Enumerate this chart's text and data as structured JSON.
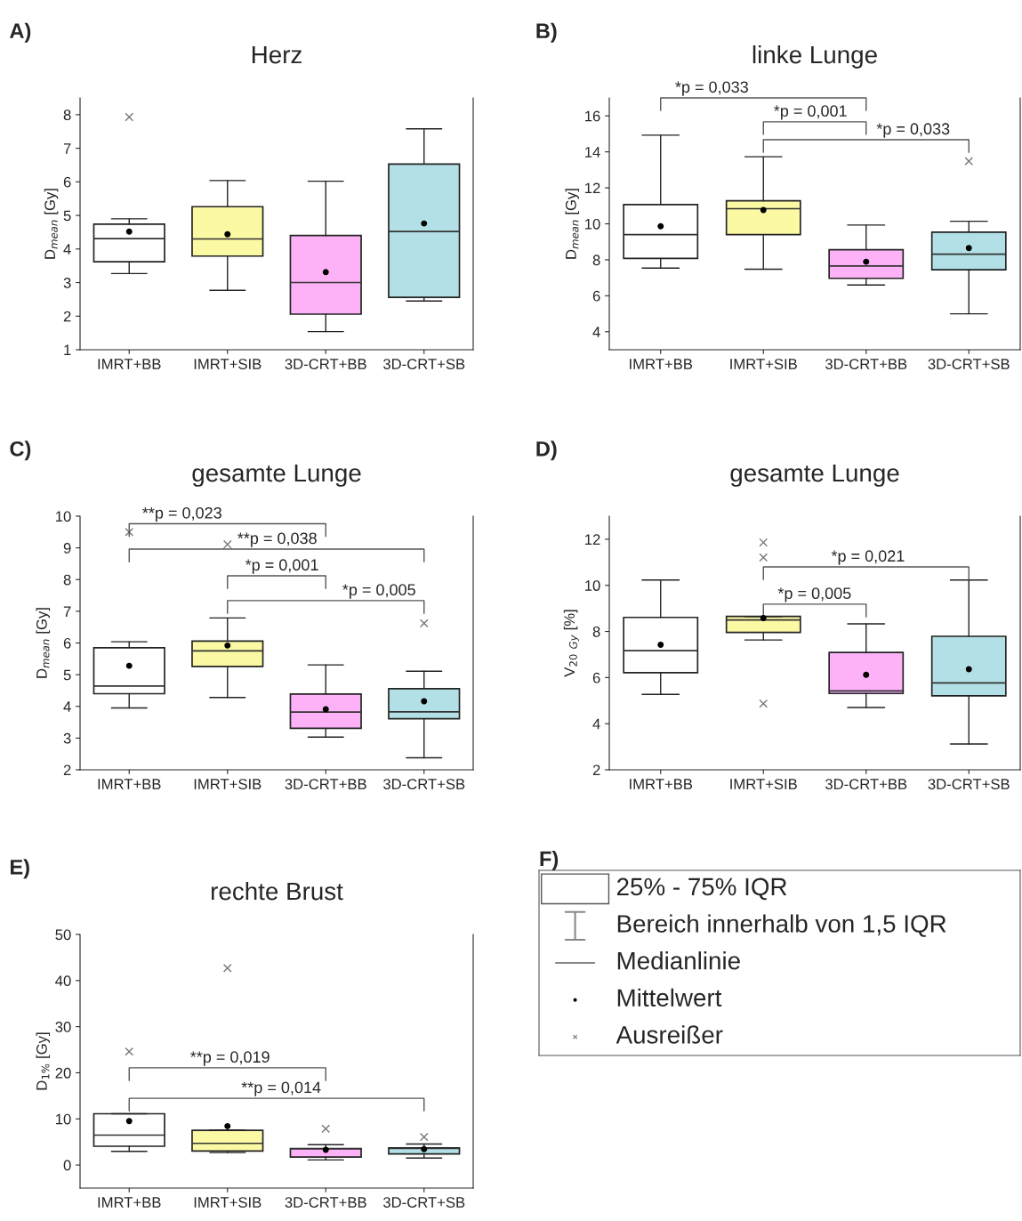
{
  "chart_data": [
    {
      "type": "box",
      "title": "Herz",
      "ylabel": "D$_{mean}$ [Gy]",
      "categories": [
        "IMRT+BB",
        "IMRT+SIB",
        "3D-CRT+BB",
        "3D-CRT+SB"
      ],
      "colors": [
        "#ffffff",
        "#fbf9a4",
        "#fdb2f8",
        "#b2e0e6"
      ],
      "ylim": [
        1,
        8.5
      ],
      "yticks": [
        1,
        2,
        3,
        4,
        5,
        6,
        7,
        8
      ],
      "grid": false,
      "legend": false,
      "boxes": [
        {
          "low": 3.27,
          "q1": 3.62,
          "median": 4.31,
          "q3": 4.74,
          "high": 4.9,
          "mean": 4.52,
          "outliers": [
            7.93
          ]
        },
        {
          "low": 2.77,
          "q1": 3.79,
          "median": 4.3,
          "q3": 5.26,
          "high": 6.04,
          "mean": 4.44
        },
        {
          "low": 1.54,
          "q1": 2.06,
          "median": 3.0,
          "q3": 4.4,
          "high": 6.02,
          "mean": 3.31
        },
        {
          "low": 2.45,
          "q1": 2.56,
          "median": 4.52,
          "q3": 6.53,
          "high": 7.58,
          "mean": 4.76
        }
      ],
      "annotations": [
        "A)"
      ]
    },
    {
      "type": "box",
      "title": "linke Lunge",
      "ylabel": "D$_{mean}$ [Gy]",
      "categories": [
        "IMRT+BB",
        "IMRT+SIB",
        "3D-CRT+BB",
        "3D-CRT+SB"
      ],
      "colors": [
        "#ffffff",
        "#fbf9a4",
        "#fdb2f8",
        "#b2e0e6"
      ],
      "ylim": [
        3,
        17
      ],
      "yticks": [
        4,
        6,
        8,
        10,
        12,
        14,
        16
      ],
      "grid": false,
      "legend": false,
      "boxes": [
        {
          "low": 7.54,
          "q1": 8.08,
          "median": 9.4,
          "q3": 11.07,
          "high": 14.93,
          "mean": 9.86
        },
        {
          "low": 7.48,
          "q1": 9.4,
          "median": 10.84,
          "q3": 11.28,
          "high": 13.73,
          "mean": 10.77
        },
        {
          "low": 6.6,
          "q1": 6.97,
          "median": 7.66,
          "q3": 8.56,
          "high": 9.93,
          "mean": 7.89
        },
        {
          "low": 5.0,
          "q1": 7.45,
          "median": 8.31,
          "q3": 9.54,
          "high": 10.14,
          "mean": 8.65,
          "outliers": [
            13.48
          ]
        }
      ],
      "annotations": [
        "B)",
        "*p = 0,033",
        "*p = 0,001",
        "*p = 0,033"
      ]
    },
    {
      "type": "box",
      "title": "gesamte Lunge",
      "ylabel": "D$_{mean}$ [Gy]",
      "categories": [
        "IMRT+BB",
        "IMRT+SIB",
        "3D-CRT+BB",
        "3D-CRT+SB"
      ],
      "colors": [
        "#ffffff",
        "#fbf9a4",
        "#fdb2f8",
        "#b2e0e6"
      ],
      "ylim": [
        2,
        10
      ],
      "yticks": [
        2,
        3,
        4,
        5,
        6,
        7,
        8,
        9,
        10
      ],
      "grid": false,
      "legend": false,
      "boxes": [
        {
          "low": 3.95,
          "q1": 4.4,
          "median": 4.64,
          "q3": 5.85,
          "high": 6.04,
          "mean": 5.28,
          "outliers": [
            9.5
          ]
        },
        {
          "low": 4.28,
          "q1": 5.26,
          "median": 5.75,
          "q3": 6.06,
          "high": 6.79,
          "mean": 5.92,
          "outliers": [
            9.11
          ]
        },
        {
          "low": 3.03,
          "q1": 3.31,
          "median": 3.82,
          "q3": 4.39,
          "high": 5.31,
          "mean": 3.91
        },
        {
          "low": 2.38,
          "q1": 3.61,
          "median": 3.83,
          "q3": 4.56,
          "high": 5.11,
          "mean": 4.16,
          "outliers": [
            6.62
          ]
        }
      ],
      "annotations": [
        "C)",
        "**p = 0,023",
        "**p = 0,038",
        "*p = 0,001",
        "*p = 0,005"
      ]
    },
    {
      "type": "box",
      "title": "gesamte Lunge",
      "ylabel": "V$_{20}$ $_{Gy}$ [%]",
      "categories": [
        "IMRT+BB",
        "IMRT+SIB",
        "3D-CRT+BB",
        "3D-CRT+SB"
      ],
      "colors": [
        "#ffffff",
        "#fbf9a4",
        "#fdb2f8",
        "#b2e0e6"
      ],
      "ylim": [
        2,
        13
      ],
      "yticks": [
        2,
        4,
        6,
        8,
        10,
        12
      ],
      "grid": false,
      "legend": false,
      "boxes": [
        {
          "low": 5.27,
          "q1": 6.21,
          "median": 7.17,
          "q3": 8.61,
          "high": 10.23,
          "mean": 7.42
        },
        {
          "low": 7.63,
          "q1": 7.96,
          "median": 8.5,
          "q3": 8.65,
          "high": 8.65,
          "mean": 8.58,
          "outliers": [
            11.86,
            11.21,
            4.87
          ]
        },
        {
          "low": 4.7,
          "q1": 5.31,
          "median": 5.42,
          "q3": 7.09,
          "high": 8.33,
          "mean": 6.12
        },
        {
          "low": 3.12,
          "q1": 5.21,
          "median": 5.77,
          "q3": 7.79,
          "high": 10.23,
          "mean": 6.36
        }
      ],
      "annotations": [
        "D)",
        "*p = 0,021",
        "*p = 0,005"
      ]
    },
    {
      "type": "box",
      "title": "rechte Brust",
      "ylabel": "D$_{1%}$ [Gy]",
      "categories": [
        "IMRT+BB",
        "IMRT+SIB",
        "3D-CRT+BB",
        "3D-CRT+SB"
      ],
      "colors": [
        "#ffffff",
        "#fbf9a4",
        "#fdb2f8",
        "#b2e0e6"
      ],
      "ylim": [
        -5,
        50
      ],
      "yticks": [
        0,
        10,
        20,
        30,
        40,
        50
      ],
      "grid": false,
      "legend": false,
      "boxes": [
        {
          "low": 2.97,
          "q1": 4.07,
          "median": 6.49,
          "q3": 11.12,
          "high": 11.12,
          "mean": 9.53,
          "outliers": [
            24.6
          ]
        },
        {
          "low": 2.69,
          "q1": 3.04,
          "median": 4.7,
          "q3": 7.53,
          "high": 7.6,
          "mean": 8.43,
          "outliers": [
            42.7
          ]
        },
        {
          "low": 1.1,
          "q1": 1.73,
          "median": 3.5,
          "q3": 3.59,
          "high": 4.42,
          "mean": 3.31,
          "outliers": [
            7.87
          ]
        },
        {
          "low": 1.52,
          "q1": 2.42,
          "median": 3.59,
          "q3": 3.73,
          "high": 4.56,
          "mean": 3.45,
          "outliers": [
            6.08
          ]
        }
      ],
      "annotations": [
        "E)",
        "**p = 0,019",
        "**p = 0,014"
      ]
    },
    {
      "type": "other",
      "annotations": [
        "F)",
        "25% - 75% IQR",
        "Bereich innerhalb von 1,5 IQR",
        "Medianlinie",
        "Mittelwert",
        "Ausreißer"
      ]
    }
  ]
}
